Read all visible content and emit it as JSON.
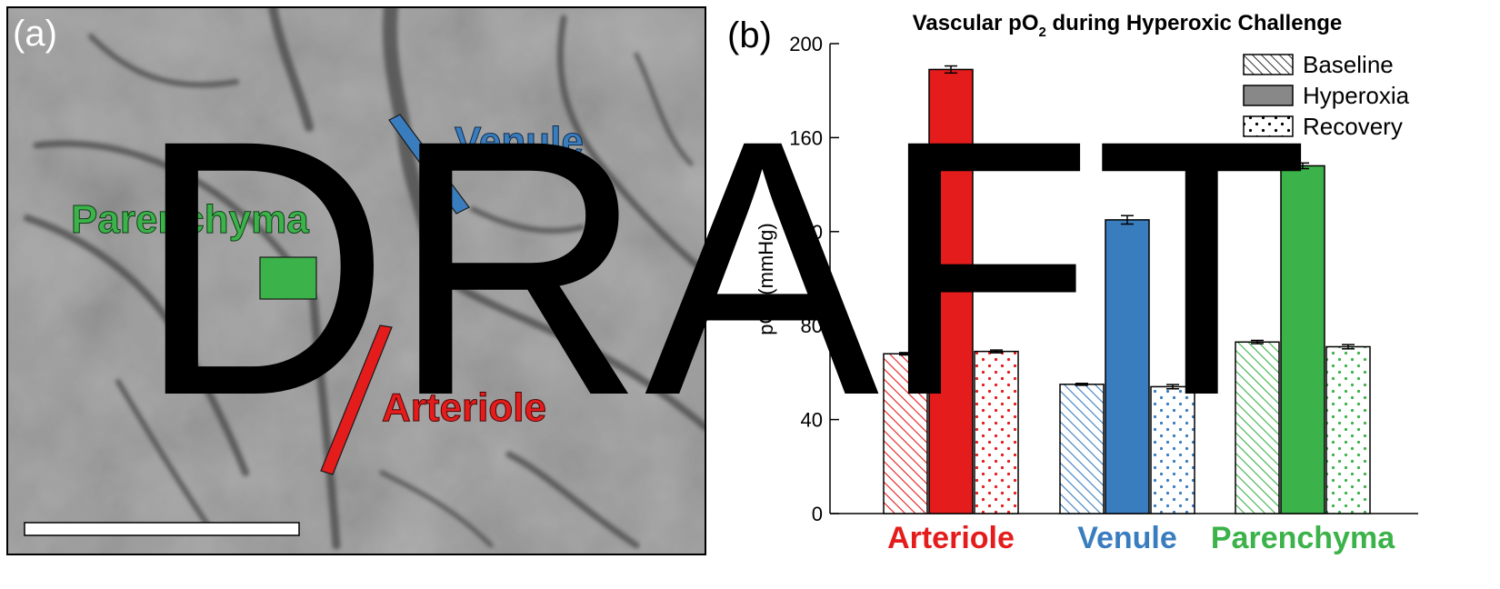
{
  "panel_a": {
    "letter": "(a)",
    "labels": {
      "venule": "Venule",
      "parenchyma": "Parenchyma",
      "arteriole": "Arteriole"
    },
    "colors": {
      "venule": "#3a7dbf",
      "parenchyma": "#3cb24a",
      "arteriole": "#e41c1c"
    }
  },
  "panel_b": {
    "letter": "(b)"
  },
  "watermark": "DRAFT",
  "chart_data": {
    "type": "bar",
    "title_main": "Vascular pO",
    "title_sub": "2",
    "title_rest": " during Hyperoxic Challenge",
    "ylabel": "pO₂ (mmHg)",
    "ylim": [
      0,
      200
    ],
    "yticks": [
      0,
      40,
      80,
      120,
      160,
      200
    ],
    "grid": false,
    "legend_position": "top-right",
    "categories": [
      "Arteriole",
      "Venule",
      "Parenchyma"
    ],
    "category_colors": [
      "#e41c1c",
      "#3a7dbf",
      "#3cb24a"
    ],
    "series": [
      {
        "name": "Baseline",
        "pattern": "hatch",
        "values": [
          68,
          55,
          73
        ],
        "errors": [
          0.5,
          0.4,
          0.7
        ]
      },
      {
        "name": "Hyperoxia",
        "pattern": "solid",
        "values": [
          189,
          125,
          148
        ],
        "errors": [
          1.5,
          1.8,
          1.2
        ]
      },
      {
        "name": "Recovery",
        "pattern": "dots",
        "values": [
          69,
          54,
          71
        ],
        "errors": [
          0.6,
          0.9,
          0.9
        ]
      }
    ]
  }
}
